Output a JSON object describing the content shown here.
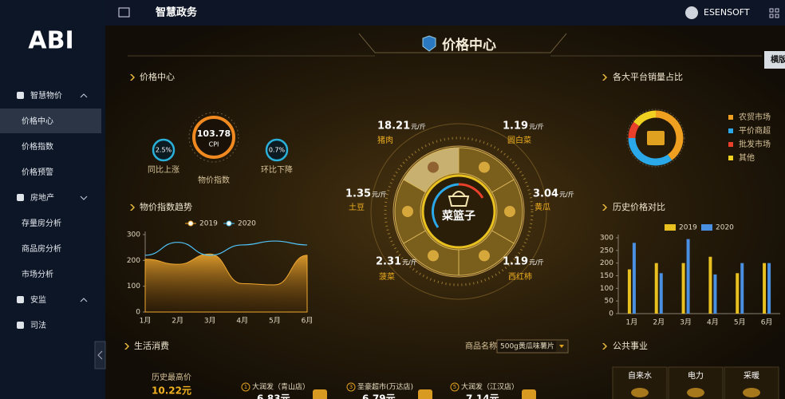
{
  "sidebar": {
    "logo": "ABI",
    "menu": [
      "智慧物价",
      "价格中心",
      "价格指数",
      "价格预警",
      "房地产",
      "存量房分析",
      "商品房分析",
      "市场分析",
      "安监",
      "司法"
    ]
  },
  "header": {
    "title": "智慧政务",
    "user": "ESENSOFT"
  },
  "page_title": "价格中心",
  "tab": "横版",
  "cpi_panel": {
    "title": "价格中心",
    "index_value": "103.78",
    "index_name": "CPI",
    "index_label": "物价指数",
    "yoy_value": "2.5%",
    "yoy_label": "同比上涨",
    "mom_value": "0.7%",
    "mom_label": "环比下降"
  },
  "basket": {
    "title": "菜篮子",
    "items": [
      {
        "price": "18.21",
        "unit": "元/斤",
        "name": "猪肉"
      },
      {
        "price": "1.19",
        "unit": "元/斤",
        "name": "圆白菜"
      },
      {
        "price": "1.35",
        "unit": "元/斤",
        "name": "土豆"
      },
      {
        "price": "3.04",
        "unit": "元/斤",
        "name": "黄瓜"
      },
      {
        "price": "2.31",
        "unit": "元/斤",
        "name": "菠菜"
      },
      {
        "price": "1.19",
        "unit": "元/斤",
        "name": "西红柿"
      }
    ]
  },
  "consumption": {
    "title": "生活消费",
    "filter_label": "商品名称",
    "filter_value": "500g黄瓜味薯片",
    "record_label": "历史最高价",
    "record_value": "10.22元",
    "stores": [
      {
        "rank": "1",
        "name": "大润发（青山店）",
        "price": "6.83元"
      },
      {
        "rank": "3",
        "name": "圣豪超市(万达店)",
        "price": "6.79元"
      },
      {
        "rank": "5",
        "name": "大润发（江汉店）",
        "price": "7.14元"
      }
    ]
  },
  "utilities": {
    "title": "公共事业",
    "items": [
      "自来水",
      "电力",
      "采暖"
    ]
  },
  "chart_data": [
    {
      "type": "line",
      "title": "物价指数趋势",
      "categories": [
        "1月",
        "2月",
        "3月",
        "4月",
        "5月",
        "6月"
      ],
      "series": [
        {
          "name": "2019",
          "color": "#f0a830",
          "values": [
            205,
            185,
            225,
            110,
            105,
            220
          ]
        },
        {
          "name": "2020",
          "color": "#4fc3f7",
          "values": [
            220,
            270,
            220,
            260,
            275,
            260
          ]
        }
      ],
      "ylim": [
        0,
        300
      ],
      "yticks": [
        0,
        100,
        200,
        300
      ]
    },
    {
      "type": "pie",
      "title": "各大平台销量占比",
      "categories": [
        "农贸市场",
        "平价商超",
        "批发市场",
        "其他"
      ],
      "values": [
        40,
        35,
        10,
        15
      ],
      "colors": [
        "#f0a020",
        "#2aa8e8",
        "#e8402a",
        "#f0d020"
      ]
    },
    {
      "type": "bar",
      "title": "历史价格对比",
      "categories": [
        "1月",
        "2月",
        "3月",
        "4月",
        "5月",
        "6月"
      ],
      "series": [
        {
          "name": "2019",
          "color": "#e8c020",
          "values": [
            175,
            200,
            200,
            225,
            160,
            200
          ]
        },
        {
          "name": "2020",
          "color": "#4a90e2",
          "values": [
            280,
            160,
            295,
            155,
            200,
            200
          ]
        }
      ],
      "ylim": [
        0,
        300
      ],
      "yticks": [
        0,
        50,
        100,
        150,
        200,
        250,
        300
      ]
    }
  ]
}
